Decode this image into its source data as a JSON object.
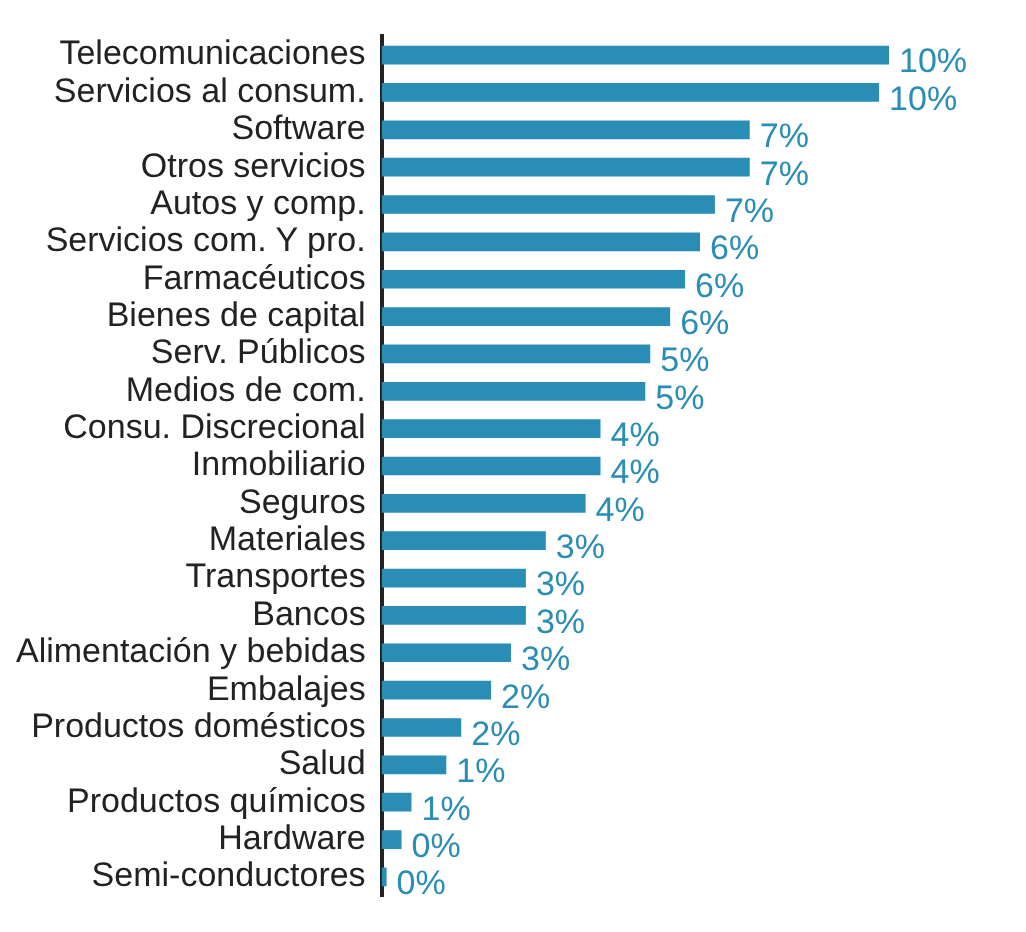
{
  "chart_data": {
    "type": "bar",
    "orientation": "horizontal",
    "color": "#2a8db5",
    "categories": [
      "Telecomunicaciones",
      "Servicios al consum.",
      "Software",
      "Otros servicios",
      "Autos y comp.",
      "Servicios com. Y pro.",
      "Farmacéuticos",
      "Bienes de capital",
      "Serv. Públicos",
      "Medios de com.",
      "Consu. Discrecional",
      "Inmobiliario",
      "Seguros",
      "Materiales",
      "Transportes",
      "Bancos",
      "Alimentación y bebidas",
      "Embalajes",
      "Productos domésticos",
      "Salud",
      "Productos químicos",
      "Hardware",
      "Semi-conductores"
    ],
    "values": [
      10.2,
      10.0,
      7.4,
      7.4,
      6.7,
      6.4,
      6.1,
      5.8,
      5.4,
      5.3,
      4.4,
      4.4,
      4.1,
      3.3,
      2.9,
      2.9,
      2.6,
      2.2,
      1.6,
      1.3,
      0.6,
      0.4,
      0.1
    ],
    "value_labels": [
      "10%",
      "10%",
      "7%",
      "7%",
      "7%",
      "6%",
      "6%",
      "6%",
      "5%",
      "5%",
      "4%",
      "4%",
      "4%",
      "3%",
      "3%",
      "3%",
      "3%",
      "2%",
      "2%",
      "1%",
      "1%",
      "0%",
      "0%"
    ],
    "grid": false,
    "legend": false
  }
}
